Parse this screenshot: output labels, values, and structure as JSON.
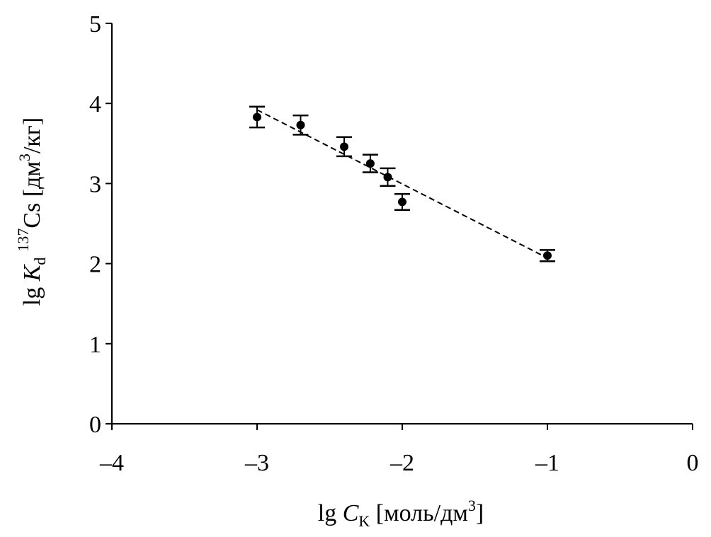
{
  "chart_data": {
    "type": "scatter",
    "title": "",
    "xlabel": {
      "prefix": "lg ",
      "var": "C",
      "sub": "K",
      "unit_pre": " [моль/дм",
      "unit_sup": "3",
      "unit_post": "]"
    },
    "ylabel": {
      "prefix": "lg ",
      "var": "K",
      "sub": "d",
      "iso_sup": "137",
      "element": "Cs [дм",
      "unit_sup": "3",
      "unit_post": "/кг]"
    },
    "xlim": [
      -4,
      0
    ],
    "ylim": [
      0,
      5
    ],
    "xticks": [
      -4,
      -3,
      -2,
      -1,
      0
    ],
    "xtick_labels": [
      "–4",
      "–3",
      "–2",
      "–1",
      "0"
    ],
    "yticks": [
      0,
      1,
      2,
      3,
      4,
      5
    ],
    "ytick_labels": [
      "0",
      "1",
      "2",
      "3",
      "4",
      "5"
    ],
    "grid": false,
    "legend": "none",
    "series": [
      {
        "points": [
          {
            "x": -3.0,
            "y": 3.83,
            "err": 0.13
          },
          {
            "x": -2.7,
            "y": 3.73,
            "err": 0.12
          },
          {
            "x": -2.4,
            "y": 3.46,
            "err": 0.12
          },
          {
            "x": -2.22,
            "y": 3.25,
            "err": 0.11
          },
          {
            "x": -2.1,
            "y": 3.08,
            "err": 0.11
          },
          {
            "x": -2.0,
            "y": 2.77,
            "err": 0.1
          },
          {
            "x": -1.0,
            "y": 2.1,
            "err": 0.07
          }
        ]
      }
    ],
    "trendline": {
      "style": "dashed",
      "x": [
        -3.0,
        -1.0
      ],
      "y": [
        3.92,
        2.07
      ]
    },
    "colors": {
      "marker": "#000000",
      "axis": "#000000",
      "trend": "#000000"
    }
  }
}
